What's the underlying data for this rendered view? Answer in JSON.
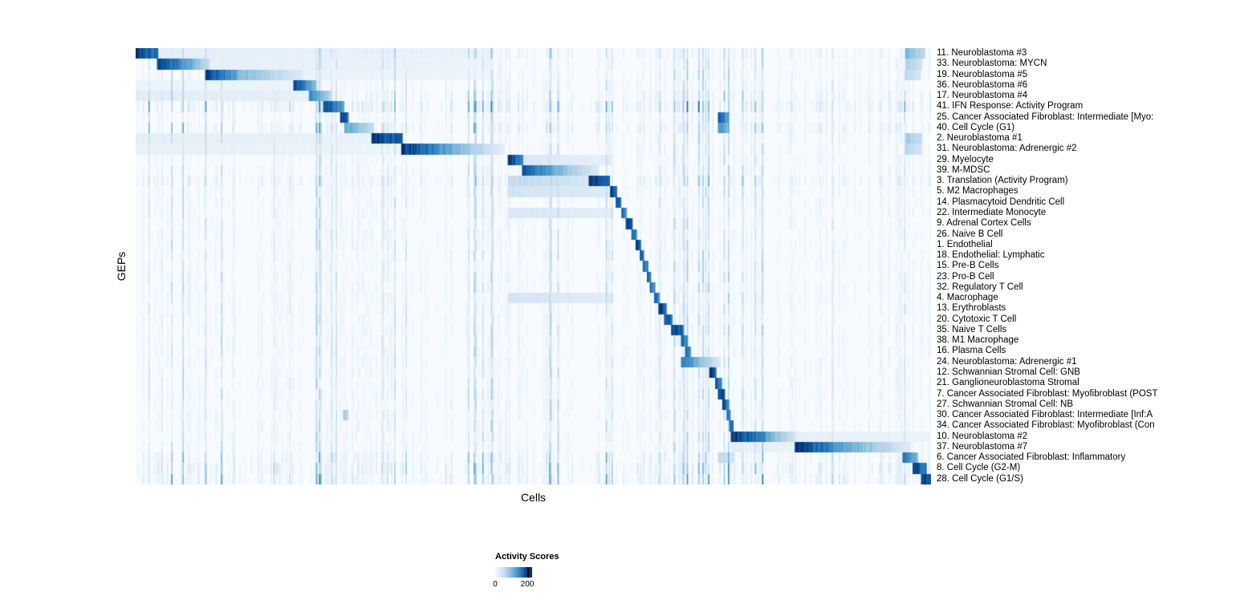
{
  "chart_data": {
    "type": "heatmap",
    "title": "",
    "xlabel": "Cells",
    "ylabel": "GEPs",
    "value_range": [
      0,
      200
    ],
    "grid": false,
    "legend_position": "bottom",
    "legend": {
      "title": "Activity Scores",
      "min_label": "0",
      "max_label": "200"
    },
    "colormap": {
      "name": "Blues",
      "stops": [
        [
          0,
          "#f7fbff"
        ],
        [
          0.13,
          "#deebf7"
        ],
        [
          0.26,
          "#c6dbef"
        ],
        [
          0.39,
          "#9ecae1"
        ],
        [
          0.52,
          "#6baed6"
        ],
        [
          0.65,
          "#4292c6"
        ],
        [
          0.78,
          "#2171b5"
        ],
        [
          0.9,
          "#08519c"
        ],
        [
          1,
          "#08306b"
        ]
      ]
    },
    "rows": [
      {
        "label": "11. Neuroblastoma #3",
        "scatter": 1.2,
        "blocks": [
          [
            0,
            0.028,
            200,
            150
          ],
          [
            0.03,
            0.45,
            20,
            14
          ],
          [
            0.968,
            0.992,
            95,
            55
          ]
        ]
      },
      {
        "label": "33. Neuroblastoma: MYCN",
        "scatter": 1.0,
        "blocks": [
          [
            0.026,
            0.058,
            200,
            140
          ],
          [
            0.058,
            0.092,
            130,
            55
          ],
          [
            0.092,
            0.45,
            18,
            12
          ],
          [
            0.968,
            0.99,
            70,
            40
          ]
        ]
      },
      {
        "label": "19. Neuroblastoma #5",
        "scatter": 1.0,
        "blocks": [
          [
            0.088,
            0.127,
            200,
            110
          ],
          [
            0.127,
            0.21,
            100,
            25
          ],
          [
            0.21,
            0.45,
            14,
            10
          ],
          [
            0.968,
            0.988,
            60,
            35
          ]
        ]
      },
      {
        "label": "36. Neuroblastoma #6",
        "scatter": 1.0,
        "blocks": [
          [
            0.199,
            0.227,
            190,
            85
          ],
          [
            0,
            0.199,
            12,
            12
          ]
        ]
      },
      {
        "label": "17. Neuroblastoma #4",
        "scatter": 1.4,
        "blocks": [
          [
            0.217,
            0.247,
            150,
            55
          ],
          [
            0,
            0.217,
            22,
            18
          ]
        ]
      },
      {
        "label": "41. IFN Response: Activity Program",
        "scatter": 2.2,
        "blocks": [
          [
            0.235,
            0.262,
            200,
            115
          ]
        ]
      },
      {
        "label": "25. Cancer Associated Fibroblast: Intermediate [Myo:",
        "scatter": 1.0,
        "blocks": [
          [
            0.257,
            0.268,
            200,
            160
          ],
          [
            0.733,
            0.746,
            170,
            110
          ]
        ]
      },
      {
        "label": "40. Cell Cycle (G1)",
        "scatter": 1.7,
        "blocks": [
          [
            0.262,
            0.3,
            120,
            45
          ],
          [
            0.733,
            0.744,
            140,
            90
          ]
        ]
      },
      {
        "label": "2. Neuroblastoma #1",
        "scatter": 1.0,
        "blocks": [
          [
            0.296,
            0.336,
            200,
            165
          ],
          [
            0,
            0.296,
            20,
            14
          ],
          [
            0.968,
            0.99,
            75,
            45
          ]
        ]
      },
      {
        "label": "31. Neuroblastoma: Adrenergic #2",
        "scatter": 1.0,
        "blocks": [
          [
            0.334,
            0.382,
            200,
            135
          ],
          [
            0.382,
            0.465,
            125,
            18
          ],
          [
            0,
            0.334,
            16,
            11
          ],
          [
            0.968,
            0.99,
            60,
            35
          ]
        ]
      },
      {
        "label": "29. Myelocyte",
        "scatter": 1.0,
        "blocks": [
          [
            0.467,
            0.488,
            200,
            135
          ],
          [
            0.488,
            0.6,
            30,
            18
          ]
        ]
      },
      {
        "label": "39. M-MDSC",
        "scatter": 1.0,
        "blocks": [
          [
            0.486,
            0.532,
            180,
            95
          ],
          [
            0.532,
            0.582,
            95,
            28
          ]
        ]
      },
      {
        "label": "3. Translation (Activity Program)",
        "scatter": 1.6,
        "blocks": [
          [
            0.468,
            0.57,
            55,
            35
          ],
          [
            0.57,
            0.597,
            200,
            155
          ]
        ]
      },
      {
        "label": "5. M2 Macrophages",
        "scatter": 1.0,
        "blocks": [
          [
            0.596,
            0.606,
            200,
            145
          ],
          [
            0.468,
            0.596,
            38,
            26
          ]
        ]
      },
      {
        "label": "14. Plasmacytoid Dendritic Cell",
        "scatter": 1.0,
        "blocks": [
          [
            0.604,
            0.611,
            190,
            140
          ]
        ]
      },
      {
        "label": "22. Intermediate Monocyte",
        "scatter": 1.0,
        "blocks": [
          [
            0.61,
            0.618,
            170,
            115
          ],
          [
            0.468,
            0.6,
            32,
            22
          ]
        ]
      },
      {
        "label": "9. Adrenal Cortex Cells",
        "scatter": 1.0,
        "blocks": [
          [
            0.616,
            0.625,
            200,
            155
          ]
        ]
      },
      {
        "label": "26. Naive B Cell",
        "scatter": 1.0,
        "blocks": [
          [
            0.623,
            0.631,
            180,
            130
          ]
        ]
      },
      {
        "label": "1. Endothelial",
        "scatter": 1.0,
        "blocks": [
          [
            0.629,
            0.636,
            190,
            145
          ]
        ]
      },
      {
        "label": "18. Endothelial: Lymphatic",
        "scatter": 1.0,
        "blocks": [
          [
            0.634,
            0.64,
            180,
            140
          ]
        ]
      },
      {
        "label": "15. Pre-B Cells",
        "scatter": 1.0,
        "blocks": [
          [
            0.638,
            0.644,
            180,
            138
          ]
        ]
      },
      {
        "label": "23. Pro-B Cell",
        "scatter": 1.0,
        "blocks": [
          [
            0.642,
            0.648,
            178,
            138
          ]
        ]
      },
      {
        "label": "32. Regulatory T Cell",
        "scatter": 1.0,
        "blocks": [
          [
            0.646,
            0.653,
            170,
            128
          ]
        ]
      },
      {
        "label": "4. Macrophage",
        "scatter": 1.0,
        "blocks": [
          [
            0.651,
            0.659,
            180,
            128
          ],
          [
            0.468,
            0.6,
            36,
            22
          ]
        ]
      },
      {
        "label": "13. Erythroblasts",
        "scatter": 1.0,
        "blocks": [
          [
            0.657,
            0.668,
            200,
            148
          ]
        ]
      },
      {
        "label": "20. Cytotoxic T Cell",
        "scatter": 1.0,
        "blocks": [
          [
            0.665,
            0.675,
            190,
            148
          ]
        ]
      },
      {
        "label": "35. Naive T Cells",
        "scatter": 1.0,
        "blocks": [
          [
            0.673,
            0.69,
            200,
            158
          ]
        ]
      },
      {
        "label": "38. M1 Macrophage",
        "scatter": 1.0,
        "blocks": [
          [
            0.685,
            0.694,
            180,
            128
          ]
        ]
      },
      {
        "label": "16. Plasma Cells",
        "scatter": 1.0,
        "blocks": [
          [
            0.691,
            0.699,
            180,
            128
          ]
        ]
      },
      {
        "label": "24. Neuroblastoma: Adrenergic #1",
        "scatter": 1.0,
        "blocks": [
          [
            0.686,
            0.702,
            160,
            115
          ],
          [
            0.702,
            0.736,
            105,
            30
          ]
        ]
      },
      {
        "label": "12. Schwannian Stromal Cell: GNB",
        "scatter": 1.0,
        "blocks": [
          [
            0.722,
            0.731,
            200,
            148
          ]
        ]
      },
      {
        "label": "21. Ganglioneuroblastoma Stromal",
        "scatter": 1.0,
        "blocks": [
          [
            0.728,
            0.737,
            180,
            130
          ]
        ]
      },
      {
        "label": "7. Cancer Associated Fibroblast: Myofibroblast (POST",
        "scatter": 1.0,
        "blocks": [
          [
            0.733,
            0.741,
            200,
            158
          ]
        ]
      },
      {
        "label": "27. Schwannian Stromal Cell: NB",
        "scatter": 1.0,
        "blocks": [
          [
            0.738,
            0.746,
            180,
            138
          ]
        ]
      },
      {
        "label": "30. Cancer Associated Fibroblast: Intermediate [Inf:A",
        "scatter": 1.0,
        "blocks": [
          [
            0.742,
            0.749,
            180,
            138
          ],
          [
            0.26,
            0.268,
            85,
            55
          ]
        ]
      },
      {
        "label": "34. Cancer Associated Fibroblast: Myofibroblast (Con",
        "scatter": 1.0,
        "blocks": [
          [
            0.746,
            0.752,
            190,
            148
          ]
        ]
      },
      {
        "label": "10. Neuroblastoma #2",
        "scatter": 1.0,
        "blocks": [
          [
            0.749,
            0.792,
            200,
            135
          ],
          [
            0.792,
            0.83,
            115,
            35
          ],
          [
            0.83,
            1.0,
            18,
            12
          ]
        ]
      },
      {
        "label": "37. Neuroblastoma #7",
        "scatter": 1.0,
        "blocks": [
          [
            0.828,
            0.872,
            200,
            145
          ],
          [
            0.872,
            0.975,
            135,
            25
          ],
          [
            0.749,
            0.828,
            20,
            14
          ]
        ]
      },
      {
        "label": "6. Cancer Associated Fibroblast: Inflammatory",
        "scatter": 1.6,
        "blocks": [
          [
            0.965,
            0.984,
            150,
            95
          ],
          [
            0.733,
            0.753,
            55,
            35
          ]
        ]
      },
      {
        "label": "8. Cell Cycle (G2-M)",
        "scatter": 2.0,
        "blocks": [
          [
            0.977,
            0.994,
            200,
            148
          ]
        ]
      },
      {
        "label": "28. Cell Cycle (G1/S)",
        "scatter": 1.9,
        "blocks": [
          [
            0.987,
            1.0,
            200,
            165
          ]
        ]
      }
    ]
  }
}
